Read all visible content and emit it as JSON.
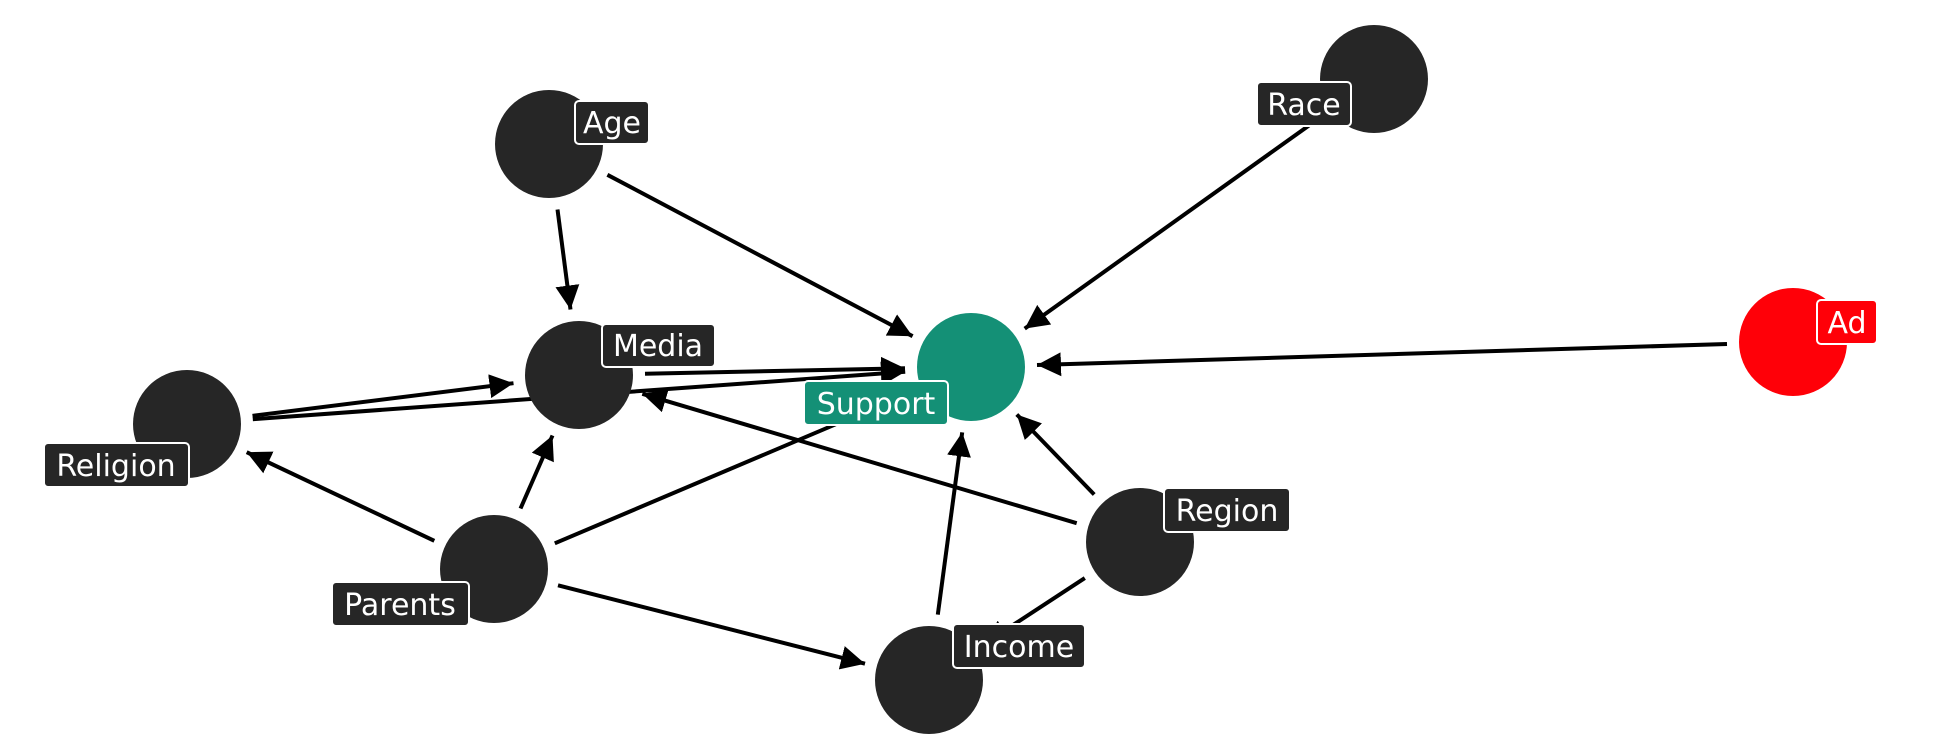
{
  "diagram": {
    "colors": {
      "default_node": "#262626",
      "outcome_node": "#149076",
      "treatment_node": "#ff0008",
      "edge": "#000000",
      "label_text": "#ffffff"
    },
    "nodes": {
      "age": {
        "label": "Age",
        "role": "default"
      },
      "race": {
        "label": "Race",
        "role": "default"
      },
      "media": {
        "label": "Media",
        "role": "default"
      },
      "support": {
        "label": "Support",
        "role": "outcome"
      },
      "ad": {
        "label": "Ad",
        "role": "treatment"
      },
      "religion": {
        "label": "Religion",
        "role": "default"
      },
      "parents": {
        "label": "Parents",
        "role": "default"
      },
      "region": {
        "label": "Region",
        "role": "default"
      },
      "income": {
        "label": "Income",
        "role": "default"
      }
    },
    "edges": [
      {
        "from": "age",
        "to": "media"
      },
      {
        "from": "age",
        "to": "support"
      },
      {
        "from": "race",
        "to": "support"
      },
      {
        "from": "ad",
        "to": "support"
      },
      {
        "from": "media",
        "to": "support"
      },
      {
        "from": "religion",
        "to": "media"
      },
      {
        "from": "religion",
        "to": "support"
      },
      {
        "from": "parents",
        "to": "religion"
      },
      {
        "from": "parents",
        "to": "media"
      },
      {
        "from": "parents",
        "to": "income"
      },
      {
        "from": "parents",
        "to": "support"
      },
      {
        "from": "region",
        "to": "media"
      },
      {
        "from": "region",
        "to": "support"
      },
      {
        "from": "region",
        "to": "income"
      },
      {
        "from": "income",
        "to": "support"
      }
    ]
  }
}
